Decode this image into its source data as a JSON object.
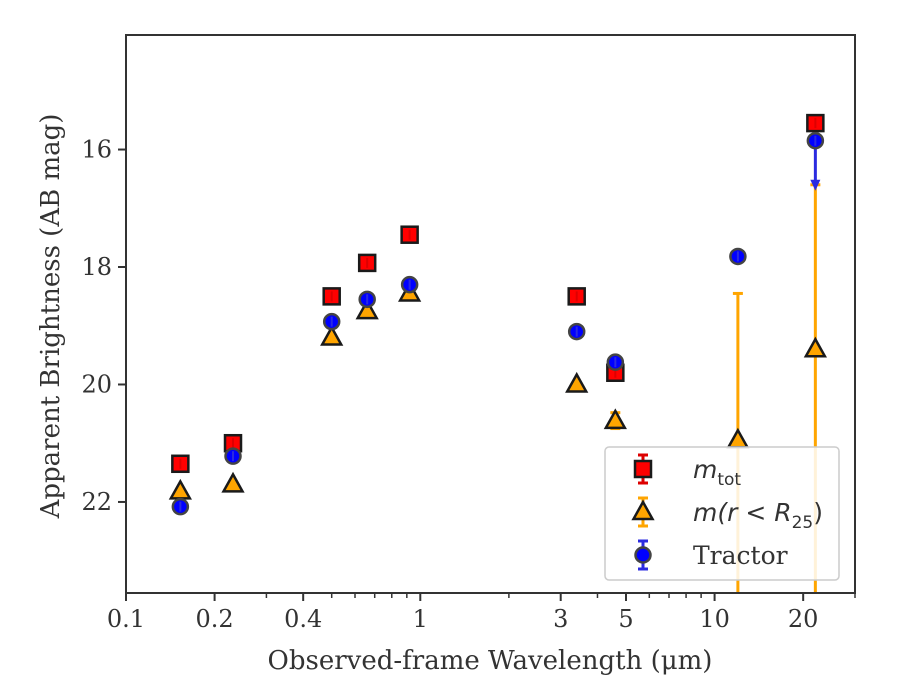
{
  "chart_data": {
    "type": "scatter",
    "xlabel": "Observed-frame Wavelength (μm)",
    "ylabel": "Apparent Brightness (AB mag)",
    "xscale": "log",
    "xlim": [
      0.1,
      30
    ],
    "ylim": [
      23.55,
      14.05
    ],
    "x_ticks": [
      {
        "value": 0.1,
        "label": "0.1"
      },
      {
        "value": 0.2,
        "label": "0.2"
      },
      {
        "value": 0.4,
        "label": "0.4"
      },
      {
        "value": 1,
        "label": "1"
      },
      {
        "value": 3,
        "label": "3"
      },
      {
        "value": 5,
        "label": "5"
      },
      {
        "value": 10,
        "label": "10"
      },
      {
        "value": 20,
        "label": "20"
      }
    ],
    "y_ticks": [
      {
        "value": 16,
        "label": "16"
      },
      {
        "value": 18,
        "label": "18"
      },
      {
        "value": 20,
        "label": "20"
      },
      {
        "value": 22,
        "label": "22"
      }
    ],
    "legend_position": "bottom-right",
    "series": [
      {
        "name": "m_tot",
        "marker": "square",
        "color": "#ff0000",
        "errorbar_color": "#dd0000",
        "points": [
          {
            "x": 0.153,
            "y": 21.35
          },
          {
            "x": 0.231,
            "y": 21.0
          },
          {
            "x": 0.5,
            "y": 18.5
          },
          {
            "x": 0.66,
            "y": 17.93
          },
          {
            "x": 0.92,
            "y": 17.45
          },
          {
            "x": 3.4,
            "y": 18.5
          },
          {
            "x": 4.6,
            "y": 19.8
          },
          {
            "x": 22.0,
            "y": 15.55
          }
        ]
      },
      {
        "name": "m(r<R25)",
        "marker": "triangle",
        "color": "#ffa500",
        "errorbar_color": "#ffa500",
        "points": [
          {
            "x": 0.153,
            "y": 21.82
          },
          {
            "x": 0.231,
            "y": 21.7
          },
          {
            "x": 0.5,
            "y": 19.2
          },
          {
            "x": 0.66,
            "y": 18.75
          },
          {
            "x": 0.92,
            "y": 18.45
          },
          {
            "x": 3.4,
            "y": 20.0
          },
          {
            "x": 4.6,
            "y": 20.62,
            "err_low": 20.48,
            "err_high": 20.75
          },
          {
            "x": 12.0,
            "y": 20.95,
            "err_low": 18.45,
            "err_high": 23.55
          },
          {
            "x": 22.0,
            "y": 19.4,
            "err_low": 16.6,
            "err_high": 23.55
          }
        ]
      },
      {
        "name": "Tractor",
        "marker": "circle",
        "color": "#0000ff",
        "errorbar_color": "#2b2be0",
        "points": [
          {
            "x": 0.153,
            "y": 22.08
          },
          {
            "x": 0.231,
            "y": 21.22
          },
          {
            "x": 0.5,
            "y": 18.93
          },
          {
            "x": 0.66,
            "y": 18.55
          },
          {
            "x": 0.92,
            "y": 18.3
          },
          {
            "x": 3.4,
            "y": 19.1
          },
          {
            "x": 4.6,
            "y": 19.62
          },
          {
            "x": 12.0,
            "y": 17.82
          },
          {
            "x": 22.0,
            "y": 15.85,
            "err_low": 15.85,
            "err_high": 16.65,
            "upper_limit_arrow": true
          }
        ]
      }
    ],
    "legend": [
      {
        "label_main": "m",
        "label_sub": "tot",
        "label_rest": ""
      },
      {
        "label_main": "m(r < R",
        "label_sub": "25",
        "label_rest": ")"
      },
      {
        "label_main": "Tractor",
        "label_sub": "",
        "label_rest": ""
      }
    ]
  }
}
